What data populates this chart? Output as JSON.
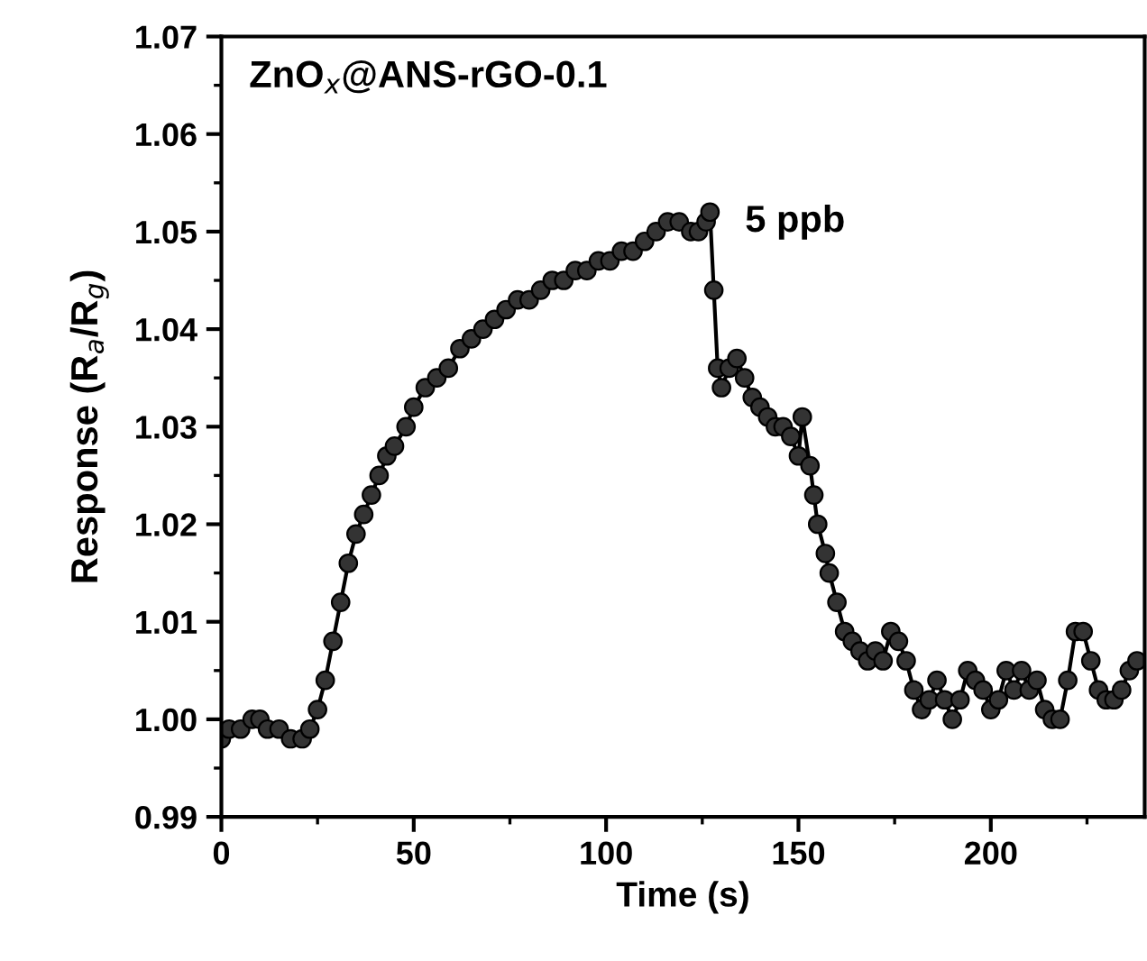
{
  "chart_data": {
    "type": "line",
    "xlabel": "Time (s)",
    "ylabel": "Response (R$_{a}$/R$_{g}$)",
    "annotations": [
      "ZnO$_{x}$@ANS-rGO-0.1",
      {
        "text": "5 ppb",
        "x": 127,
        "y": 1.052
      }
    ],
    "x": [
      0,
      2,
      5,
      8,
      10,
      12,
      15,
      18,
      21,
      23,
      25,
      27,
      29,
      31,
      33,
      35,
      37,
      39,
      41,
      43,
      45,
      48,
      50,
      53,
      56,
      59,
      62,
      65,
      68,
      71,
      74,
      77,
      80,
      83,
      86,
      89,
      92,
      95,
      98,
      101,
      104,
      107,
      110,
      113,
      116,
      119,
      122,
      124,
      126,
      127,
      128,
      129,
      130,
      132,
      134,
      136,
      138,
      140,
      142,
      144,
      146,
      148,
      150,
      151,
      153,
      154,
      155,
      157,
      158,
      160,
      162,
      164,
      166,
      168,
      170,
      172,
      174,
      176,
      178,
      180,
      182,
      184,
      186,
      188,
      190,
      192,
      194,
      196,
      198,
      200,
      202,
      204,
      206,
      208,
      210,
      212,
      214,
      216,
      218,
      220,
      222,
      224,
      226,
      228,
      230,
      232,
      234,
      236,
      238
    ],
    "series": [
      {
        "color": "#333333",
        "values": [
          0.998,
          0.999,
          0.999,
          1.0,
          1.0,
          0.999,
          0.999,
          0.998,
          0.998,
          0.999,
          1.001,
          1.004,
          1.008,
          1.012,
          1.016,
          1.019,
          1.021,
          1.023,
          1.025,
          1.027,
          1.028,
          1.03,
          1.032,
          1.034,
          1.035,
          1.036,
          1.038,
          1.039,
          1.04,
          1.041,
          1.042,
          1.043,
          1.043,
          1.044,
          1.045,
          1.045,
          1.046,
          1.046,
          1.047,
          1.047,
          1.048,
          1.048,
          1.049,
          1.05,
          1.051,
          1.051,
          1.05,
          1.05,
          1.051,
          1.052,
          1.044,
          1.036,
          1.034,
          1.036,
          1.037,
          1.035,
          1.033,
          1.032,
          1.031,
          1.03,
          1.03,
          1.029,
          1.027,
          1.031,
          1.026,
          1.023,
          1.02,
          1.017,
          1.015,
          1.012,
          1.009,
          1.008,
          1.007,
          1.006,
          1.007,
          1.006,
          1.009,
          1.008,
          1.006,
          1.003,
          1.001,
          1.002,
          1.004,
          1.002,
          1.0,
          1.002,
          1.005,
          1.004,
          1.003,
          1.001,
          1.002,
          1.005,
          1.003,
          1.005,
          1.003,
          1.004,
          1.001,
          1.0,
          1.0,
          1.004,
          1.009,
          1.009,
          1.006,
          1.003,
          1.002,
          1.002,
          1.003,
          1.005,
          1.006
        ]
      }
    ],
    "xlim": [
      0,
      240
    ],
    "xticks": [
      0,
      50,
      100,
      150,
      200
    ],
    "ylim": [
      0.99,
      1.07
    ],
    "yticks": [
      {
        "value": 0.99,
        "label": "0.99"
      },
      {
        "value": 1.0,
        "label": "1.00"
      },
      {
        "value": 1.01,
        "label": "1.01"
      },
      {
        "value": 1.02,
        "label": "1.02"
      },
      {
        "value": 1.03,
        "label": "1.03"
      },
      {
        "value": 1.04,
        "label": "1.04"
      },
      {
        "value": 1.05,
        "label": "1.05"
      },
      {
        "value": 1.06,
        "label": "1.06"
      },
      {
        "value": 1.07,
        "label": "1.07"
      }
    ],
    "marker": "circle",
    "line_style": "solid",
    "grid": false,
    "legend": false
  }
}
